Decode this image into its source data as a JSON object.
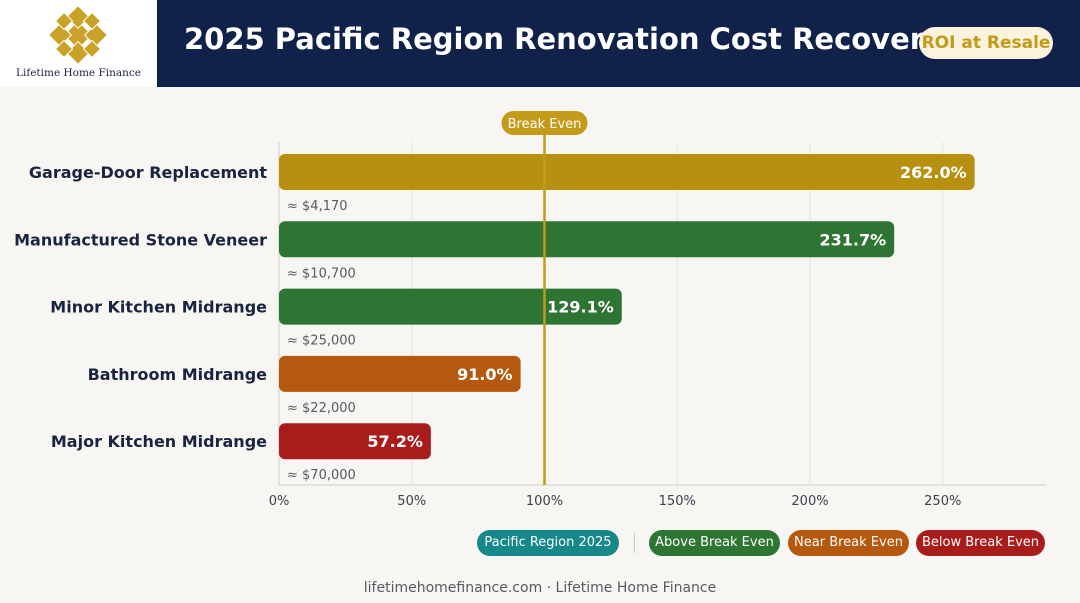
{
  "header": {
    "brand": "Lifetime Home Finance",
    "title": "2025 Pacific Region Renovation Cost Recovery",
    "badge": "ROI at Resale"
  },
  "chart_data": {
    "type": "bar",
    "orientation": "horizontal",
    "categories": [
      "Garage-Door Replacement",
      "Manufactured Stone Veneer",
      "Minor Kitchen Midrange",
      "Bathroom Midrange",
      "Major Kitchen Midrange"
    ],
    "values": [
      262.0,
      231.7,
      129.1,
      91.0,
      57.2
    ],
    "value_labels": [
      "262.0%",
      "231.7%",
      "129.1%",
      "91.0%",
      "57.2%"
    ],
    "cost_labels": [
      "≈ $4,170",
      "≈ $10,700",
      "≈ $25,000",
      "≈ $22,000",
      "≈ $70,000"
    ],
    "bar_colors": [
      "#b8900f",
      "#2e7433",
      "#2e7433",
      "#b5590f",
      "#a81c1c"
    ],
    "xlim": [
      0,
      290
    ],
    "xticks": [
      0,
      50,
      100,
      150,
      200,
      250
    ],
    "xtick_labels": [
      "0%",
      "50%",
      "100%",
      "150%",
      "200%",
      "250%"
    ],
    "reference_line": {
      "value": 100,
      "label": "Break Even",
      "color": "#c49a1a"
    },
    "grid": true,
    "legend_position": "bottom-right"
  },
  "legend": {
    "items": [
      {
        "label": "Pacific Region 2025",
        "color": "#16888a"
      },
      {
        "label": "Above Break Even",
        "color": "#2e7433"
      },
      {
        "label": "Near Break Even",
        "color": "#b5590f"
      },
      {
        "label": "Below Break Even",
        "color": "#a81c1c"
      }
    ]
  },
  "footer": {
    "text": "lifetimehomefinance.com · Lifetime Home Finance"
  }
}
